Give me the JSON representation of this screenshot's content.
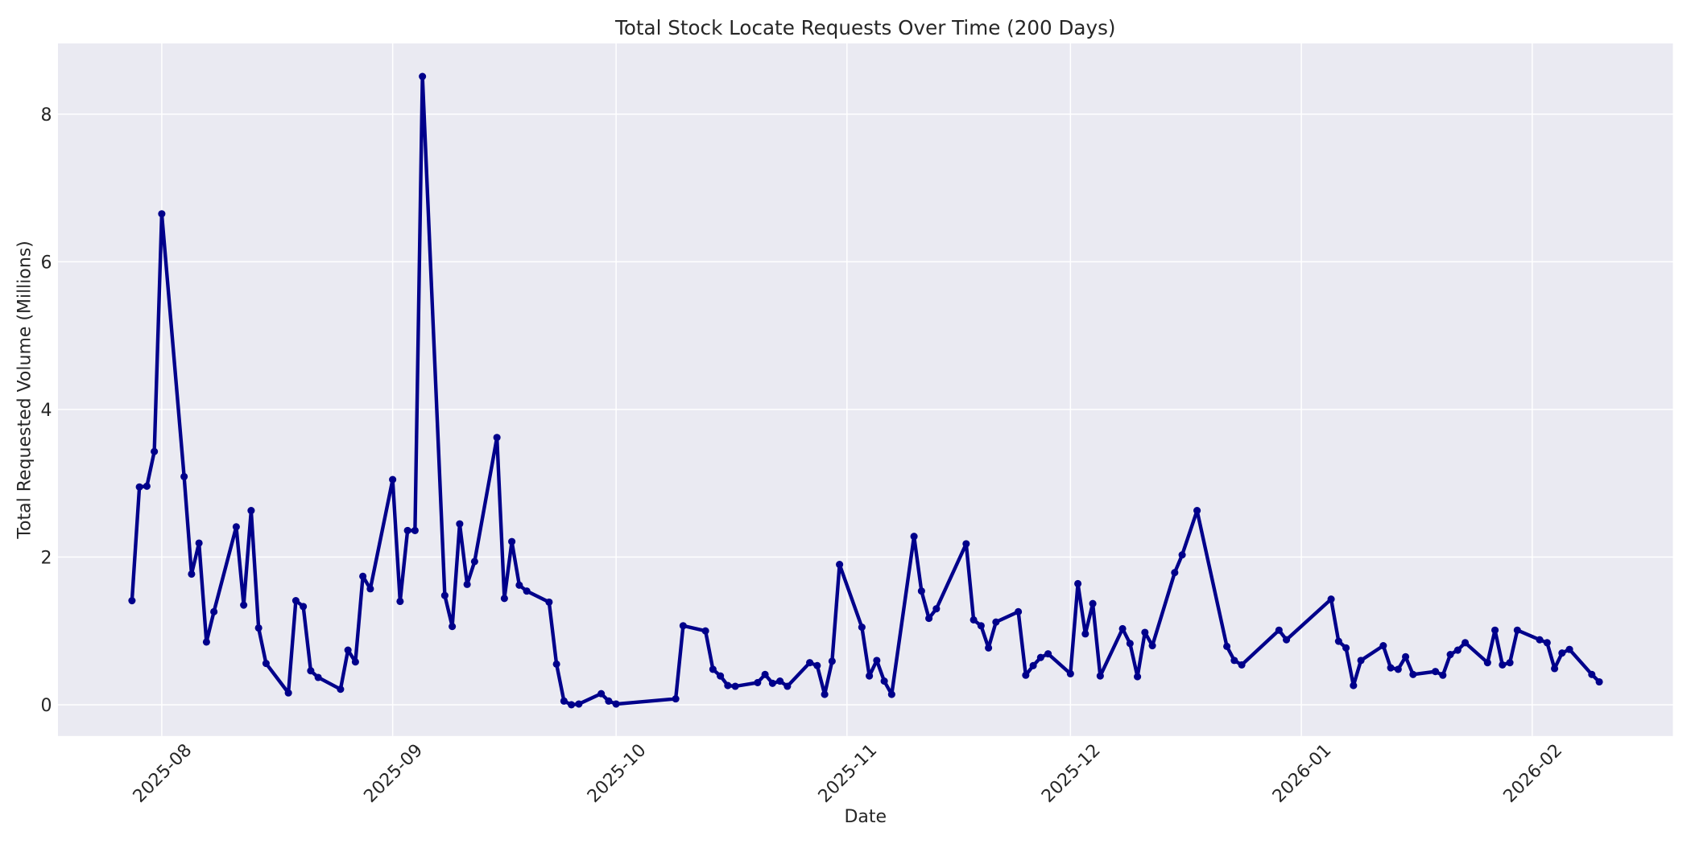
{
  "figure": {
    "title": "Total Stock Locate Requests Over Time (200 Days)"
  },
  "chart_data": {
    "type": "line",
    "title": "Total Stock Locate Requests Over Time (200 Days)",
    "xlabel": "Date",
    "ylabel": "Total Requested Volume (Millions)",
    "series": [
      {
        "name": "total_requested_volume_millions",
        "x": [
          "2025-07-28",
          "2025-07-29",
          "2025-07-30",
          "2025-07-31",
          "2025-08-01",
          "2025-08-04",
          "2025-08-05",
          "2025-08-06",
          "2025-08-07",
          "2025-08-08",
          "2025-08-11",
          "2025-08-12",
          "2025-08-13",
          "2025-08-14",
          "2025-08-15",
          "2025-08-18",
          "2025-08-19",
          "2025-08-20",
          "2025-08-21",
          "2025-08-22",
          "2025-08-25",
          "2025-08-26",
          "2025-08-27",
          "2025-08-28",
          "2025-08-29",
          "2025-09-01",
          "2025-09-02",
          "2025-09-03",
          "2025-09-04",
          "2025-09-05",
          "2025-09-08",
          "2025-09-09",
          "2025-09-10",
          "2025-09-11",
          "2025-09-12",
          "2025-09-15",
          "2025-09-16",
          "2025-09-17",
          "2025-09-18",
          "2025-09-19",
          "2025-09-22",
          "2025-09-23",
          "2025-09-24",
          "2025-09-25",
          "2025-09-26",
          "2025-09-29",
          "2025-09-30",
          "2025-10-01",
          "2025-10-09",
          "2025-10-10",
          "2025-10-13",
          "2025-10-14",
          "2025-10-15",
          "2025-10-16",
          "2025-10-17",
          "2025-10-20",
          "2025-10-21",
          "2025-10-22",
          "2025-10-23",
          "2025-10-24",
          "2025-10-27",
          "2025-10-28",
          "2025-10-29",
          "2025-10-30",
          "2025-10-31",
          "2025-11-03",
          "2025-11-04",
          "2025-11-05",
          "2025-11-06",
          "2025-11-07",
          "2025-11-10",
          "2025-11-11",
          "2025-11-12",
          "2025-11-13",
          "2025-11-17",
          "2025-11-18",
          "2025-11-19",
          "2025-11-20",
          "2025-11-21",
          "2025-11-24",
          "2025-11-25",
          "2025-11-26",
          "2025-11-27",
          "2025-11-28",
          "2025-12-01",
          "2025-12-02",
          "2025-12-03",
          "2025-12-04",
          "2025-12-05",
          "2025-12-08",
          "2025-12-09",
          "2025-12-10",
          "2025-12-11",
          "2025-12-12",
          "2025-12-15",
          "2025-12-16",
          "2025-12-18",
          "2025-12-22",
          "2025-12-23",
          "2025-12-24",
          "2025-12-29",
          "2025-12-30",
          "2026-01-05",
          "2026-01-06",
          "2026-01-07",
          "2026-01-08",
          "2026-01-09",
          "2026-01-12",
          "2026-01-13",
          "2026-01-14",
          "2026-01-15",
          "2026-01-16",
          "2026-01-19",
          "2026-01-20",
          "2026-01-21",
          "2026-01-22",
          "2026-01-23",
          "2026-01-26",
          "2026-01-27",
          "2026-01-28",
          "2026-01-29",
          "2026-01-30",
          "2026-02-02",
          "2026-02-03",
          "2026-02-04",
          "2026-02-05",
          "2026-02-06",
          "2026-02-09",
          "2026-02-10"
        ],
        "values": [
          1.41,
          2.95,
          2.96,
          3.43,
          6.65,
          3.09,
          1.77,
          2.19,
          0.85,
          1.26,
          2.41,
          1.35,
          2.63,
          1.04,
          0.56,
          0.16,
          1.41,
          1.33,
          0.46,
          0.37,
          0.21,
          0.74,
          0.58,
          1.74,
          1.57,
          3.05,
          1.4,
          2.36,
          2.36,
          8.51,
          1.48,
          1.06,
          2.45,
          1.63,
          1.94,
          3.62,
          1.44,
          2.21,
          1.62,
          1.54,
          1.39,
          0.55,
          0.05,
          0.0,
          0.01,
          0.15,
          0.05,
          0.01,
          0.08,
          1.07,
          1.0,
          0.48,
          0.39,
          0.26,
          0.25,
          0.3,
          0.41,
          0.29,
          0.32,
          0.25,
          0.57,
          0.53,
          0.14,
          0.59,
          1.9,
          1.05,
          0.39,
          0.6,
          0.32,
          0.14,
          2.28,
          1.54,
          1.17,
          1.3,
          2.18,
          1.15,
          1.07,
          0.77,
          1.12,
          1.26,
          0.4,
          0.53,
          0.64,
          0.69,
          0.42,
          1.64,
          0.96,
          1.37,
          0.39,
          1.03,
          0.83,
          0.38,
          0.98,
          0.8,
          1.79,
          2.03,
          2.63,
          0.79,
          0.6,
          0.54,
          1.01,
          0.88,
          1.43,
          0.86,
          0.77,
          0.26,
          0.6,
          0.8,
          0.5,
          0.48,
          0.65,
          0.41,
          0.45,
          0.4,
          0.68,
          0.74,
          0.84,
          0.57,
          1.01,
          0.54,
          0.57,
          1.01,
          0.88,
          0.84,
          0.49,
          0.7,
          0.75,
          0.41,
          0.31
        ]
      }
    ],
    "x_tick_labels": [
      "2025-08",
      "2025-09",
      "2025-10",
      "2025-11",
      "2025-12",
      "2026-01",
      "2026-02"
    ],
    "x_tick_dates": [
      "2025-08-01",
      "2025-09-01",
      "2025-10-01",
      "2025-11-01",
      "2025-12-01",
      "2026-01-01",
      "2026-02-01"
    ],
    "y_ticks": [
      0,
      2,
      4,
      6,
      8
    ],
    "ylim": [
      -0.4235,
      8.9575
    ],
    "xlim_days_from_first": [
      -9.935,
      206.885
    ],
    "x_tick_rotation_deg": 45,
    "grid": true,
    "legend": false,
    "marker": "circle",
    "colors": {
      "line": "#00008b",
      "marker": "#00008b",
      "plot_background": "#eaeaf2",
      "figure_background": "#ffffff",
      "grid": "#ffffff",
      "text": "#262626"
    }
  }
}
